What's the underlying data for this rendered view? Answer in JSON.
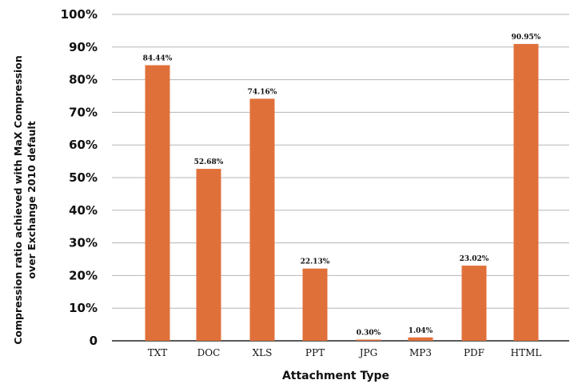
{
  "chart_data": {
    "type": "bar",
    "categories": [
      "TXT",
      "DOC",
      "XLS",
      "PPT",
      "JPG",
      "MP3",
      "PDF",
      "HTML"
    ],
    "values": [
      84.44,
      52.68,
      74.16,
      22.13,
      0.3,
      1.04,
      23.02,
      90.95
    ],
    "data_labels": [
      "84.44%",
      "52.68%",
      "74.16%",
      "22.13%",
      "0.30%",
      "1.04%",
      "23.02%",
      "90.95%"
    ],
    "xlabel": "Attachment Type",
    "ylabel_lines": [
      "Compression ratio achieved with MaX Compression",
      "over Exchange 2010 default"
    ],
    "ylim": [
      0,
      100
    ],
    "yticks": [
      0,
      10,
      20,
      30,
      40,
      50,
      60,
      70,
      80,
      90,
      100
    ],
    "ytick_labels": [
      "0",
      "10%",
      "20%",
      "30%",
      "40%",
      "50%",
      "60%",
      "70%",
      "80%",
      "90%",
      "100%"
    ],
    "grid": true,
    "colors": {
      "bar": "#e0703a",
      "grid": "#b5b5b5",
      "axis": "#222222"
    }
  }
}
